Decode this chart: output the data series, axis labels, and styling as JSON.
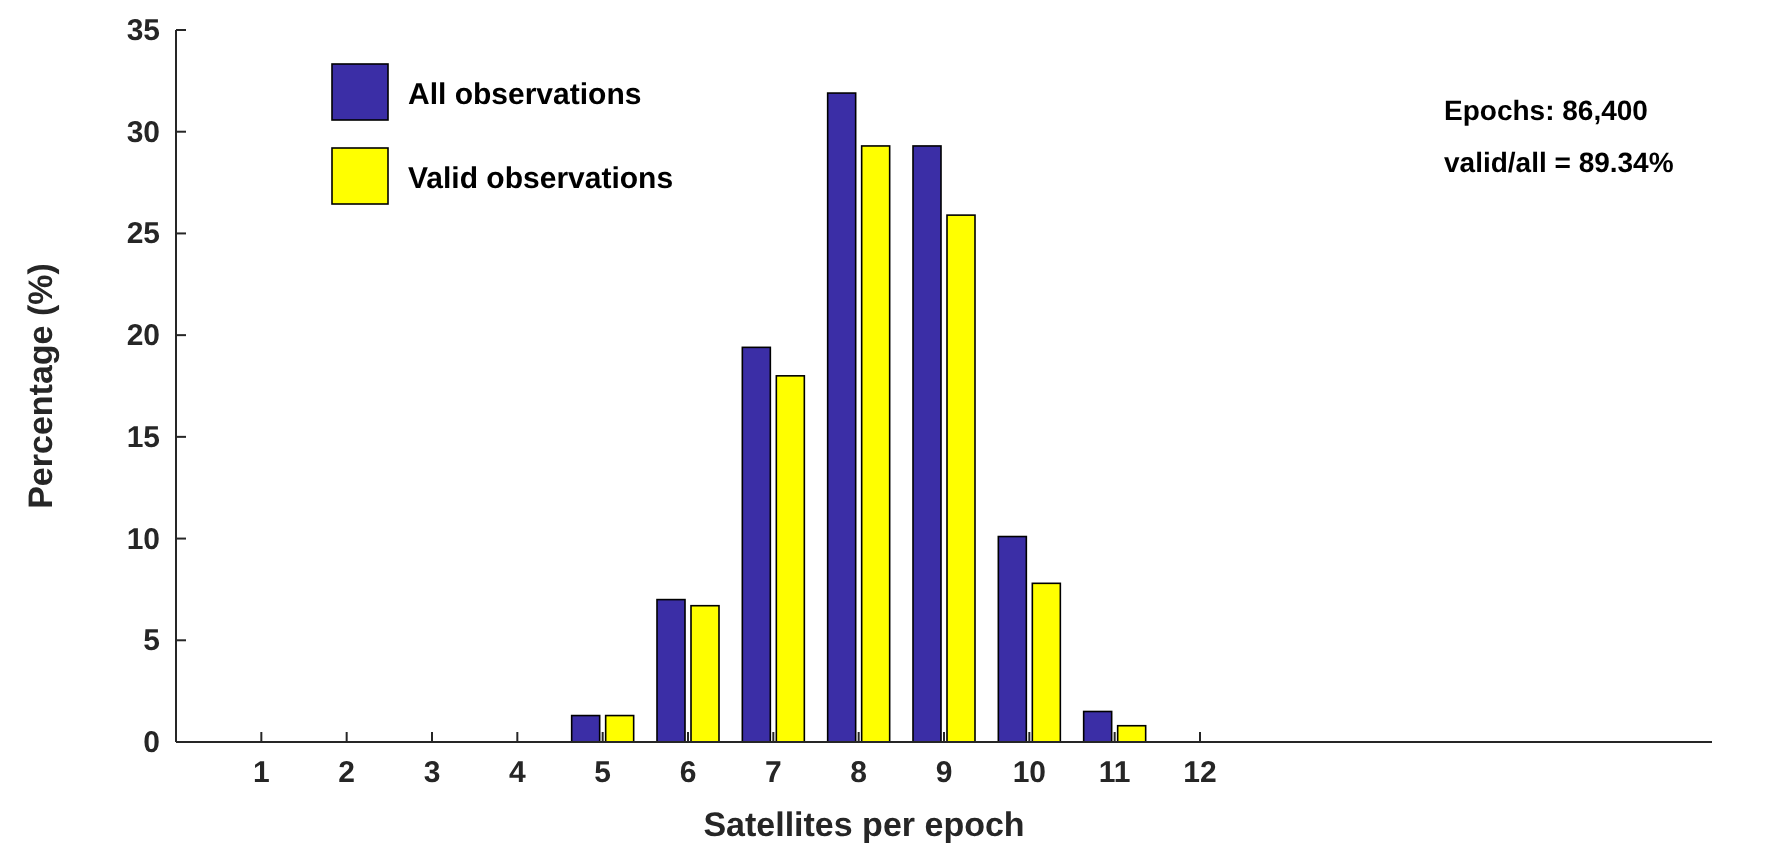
{
  "chart_data": {
    "type": "bar",
    "xlabel": "Satellites per epoch",
    "ylabel": "Percentage (%)",
    "x": [
      1,
      2,
      3,
      4,
      5,
      6,
      7,
      8,
      9,
      10,
      11,
      12
    ],
    "series": [
      {
        "name": "All observations",
        "color": "#3b2ea6",
        "values": [
          0,
          0,
          0,
          0,
          1.3,
          7.0,
          19.4,
          31.9,
          29.3,
          10.1,
          1.5,
          0
        ]
      },
      {
        "name": "Valid observations",
        "color": "#ffff00",
        "values": [
          0,
          0,
          0,
          0,
          1.3,
          6.7,
          18.0,
          29.3,
          25.9,
          7.8,
          0.8,
          0
        ]
      }
    ],
    "xlim": [
      0,
      18
    ],
    "xticks": [
      1,
      2,
      3,
      4,
      5,
      6,
      7,
      8,
      9,
      10,
      11,
      12
    ],
    "ylim": [
      0,
      35
    ],
    "yticks": [
      0,
      5,
      10,
      15,
      20,
      25,
      30,
      35
    ],
    "grid": false,
    "legend": "top left",
    "annotations": [
      "Epochs: 86,400",
      "valid/all = 89.34%"
    ]
  }
}
